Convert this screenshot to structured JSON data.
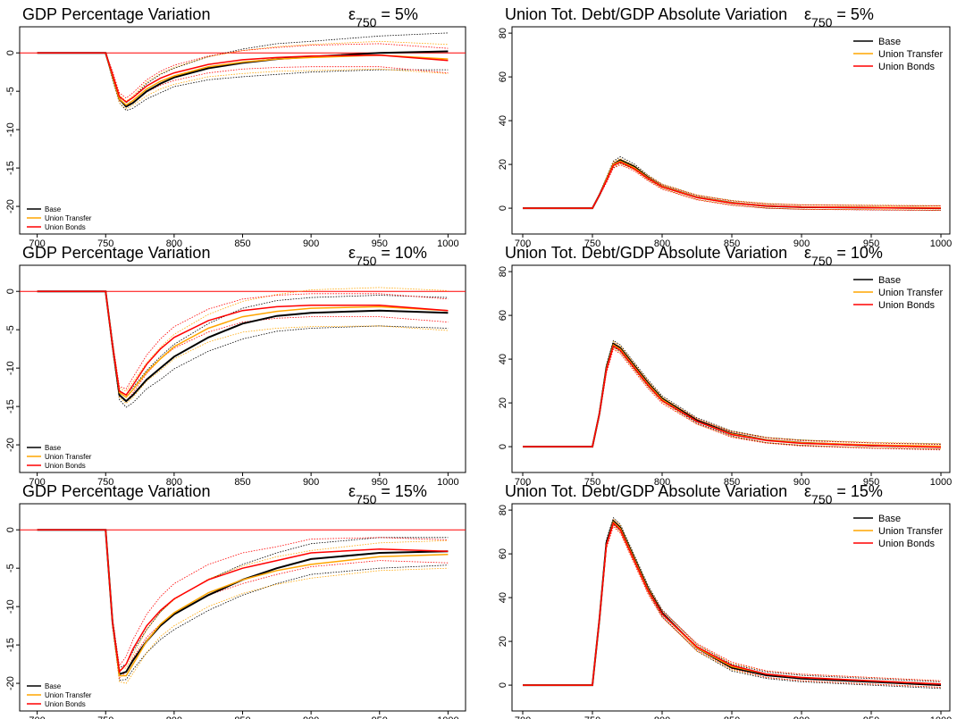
{
  "chart_data": [
    {
      "type": "line",
      "title": "GDP Percentage Variation",
      "annotation": [
        "ε",
        "750",
        " = 5%"
      ],
      "x": [
        700,
        745,
        750,
        755,
        760,
        765,
        770,
        780,
        790,
        800,
        825,
        850,
        875,
        900,
        950,
        1000
      ],
      "xlim": [
        687.2,
        1012.8
      ],
      "xticks": [
        700,
        750,
        800,
        850,
        900,
        950,
        1000
      ],
      "ylim": [
        -23.6,
        3.4
      ],
      "yticks": [
        0,
        -5,
        -10,
        -15,
        -20
      ],
      "hline": 0,
      "hline_color": "#ff0000",
      "legend": "bottom-left",
      "series": [
        {
          "name": "Base",
          "color": "#000000",
          "values": [
            0,
            0,
            0,
            -3,
            -6,
            -7,
            -6.5,
            -5,
            -4,
            -3.2,
            -2,
            -1.3,
            -0.8,
            -0.5,
            0,
            0.2
          ],
          "errors": [
            0,
            0,
            0,
            0.5,
            0.5,
            0.5,
            0.7,
            1,
            1.2,
            1.2,
            1.5,
            1.8,
            2,
            2,
            2.2,
            2.4
          ]
        },
        {
          "name": "Union Transfer",
          "color": "#ffa500",
          "values": [
            0,
            0,
            0,
            -3,
            -6,
            -6.8,
            -6.2,
            -4.7,
            -3.7,
            -3,
            -1.8,
            -1.2,
            -0.8,
            -0.6,
            -0.3,
            -0.8
          ],
          "errors": [
            0,
            0,
            0,
            0.4,
            0.5,
            0.5,
            0.6,
            0.9,
            1,
            1.1,
            1.3,
            1.5,
            1.6,
            1.7,
            1.8,
            1.9
          ]
        },
        {
          "name": "Union Bonds",
          "color": "#ff0000",
          "values": [
            0,
            0,
            0,
            -2.8,
            -5.7,
            -6.4,
            -5.8,
            -4.3,
            -3.3,
            -2.6,
            -1.5,
            -0.9,
            -0.6,
            -0.4,
            -0.3,
            -1
          ],
          "errors": [
            0,
            0,
            0,
            0.4,
            0.5,
            0.5,
            0.6,
            0.8,
            0.9,
            1,
            1.1,
            1.2,
            1.3,
            1.4,
            1.5,
            1.6
          ]
        }
      ]
    },
    {
      "type": "line",
      "title": "Union Tot. Debt/GDP Absolute Variation",
      "annotation": [
        "ε",
        "750",
        " = 5%"
      ],
      "x": [
        700,
        745,
        750,
        755,
        760,
        765,
        770,
        780,
        790,
        800,
        825,
        850,
        875,
        900,
        950,
        1000
      ],
      "xlim": [
        692.3,
        1006.4
      ],
      "xticks": [
        700,
        750,
        800,
        850,
        900,
        950,
        1000
      ],
      "ylim": [
        -11.8,
        82.9
      ],
      "yticks": [
        0,
        20,
        40,
        60,
        80
      ],
      "legend": "top-right",
      "series": [
        {
          "name": "Base",
          "color": "#000000",
          "values": [
            0,
            0,
            0,
            6,
            13,
            20,
            22,
            19,
            14,
            10,
            5,
            2.5,
            1,
            0.5,
            0.3,
            0
          ],
          "errors": [
            0,
            0,
            0,
            0.5,
            1,
            1.5,
            1.5,
            1.2,
            1,
            1,
            1,
            1,
            1,
            1,
            1,
            1
          ]
        },
        {
          "name": "Union Transfer",
          "color": "#ffa500",
          "values": [
            0,
            0,
            0,
            6,
            13,
            20,
            21.5,
            18.5,
            13.8,
            10,
            5,
            2.5,
            1.2,
            0.6,
            0.4,
            0.2
          ],
          "errors": [
            0,
            0,
            0,
            0.5,
            1,
            1.2,
            1.2,
            1,
            1,
            1,
            1,
            1,
            1,
            1,
            1,
            1
          ]
        },
        {
          "name": "Union Bonds",
          "color": "#ff0000",
          "values": [
            0,
            0,
            0,
            6,
            12.5,
            19.5,
            21,
            18,
            13.5,
            9.7,
            4.8,
            2.3,
            1,
            0.5,
            0.2,
            0
          ],
          "errors": [
            0,
            0,
            0,
            0.5,
            1,
            1.2,
            1.2,
            1,
            1,
            1,
            1,
            1,
            1,
            1,
            1,
            1
          ]
        }
      ]
    },
    {
      "type": "line",
      "title": "GDP Percentage Variation",
      "annotation": [
        "ε",
        "750",
        " = 10%"
      ],
      "x": [
        700,
        745,
        750,
        755,
        760,
        765,
        770,
        780,
        790,
        800,
        825,
        850,
        875,
        900,
        950,
        1000
      ],
      "xlim": [
        687.2,
        1012.8
      ],
      "xticks": [
        700,
        750,
        800,
        850,
        900,
        950,
        1000
      ],
      "ylim": [
        -23.6,
        3.4
      ],
      "yticks": [
        0,
        -5,
        -10,
        -15,
        -20
      ],
      "hline": 0,
      "hline_color": "#ff0000",
      "legend": "bottom-left",
      "series": [
        {
          "name": "Base",
          "color": "#000000",
          "values": [
            0,
            0,
            0,
            -7,
            -13.5,
            -14.3,
            -13.5,
            -11.5,
            -10,
            -8.5,
            -6,
            -4.2,
            -3.2,
            -2.8,
            -2.5,
            -2.8
          ],
          "errors": [
            0,
            0,
            0,
            0.5,
            0.6,
            0.8,
            1,
            1.2,
            1.5,
            1.6,
            1.8,
            2,
            2,
            2,
            2,
            2
          ]
        },
        {
          "name": "Union Transfer",
          "color": "#ffa500",
          "values": [
            0,
            0,
            0,
            -7,
            -13.2,
            -13.8,
            -12.8,
            -10.5,
            -8.8,
            -7.2,
            -4.8,
            -3.3,
            -2.6,
            -2.2,
            -2,
            -2.5
          ],
          "errors": [
            0,
            0,
            0,
            0.5,
            0.6,
            0.8,
            1,
            1.2,
            1.5,
            1.6,
            1.8,
            2,
            2.2,
            2.4,
            2.5,
            2.6
          ]
        },
        {
          "name": "Union Bonds",
          "color": "#ff0000",
          "values": [
            0,
            0,
            0,
            -7,
            -13,
            -13.5,
            -12.2,
            -9.5,
            -7.5,
            -6,
            -3.8,
            -2.5,
            -2,
            -1.8,
            -1.8,
            -2.5
          ],
          "errors": [
            0,
            0,
            0,
            0.5,
            0.6,
            0.8,
            1,
            1.2,
            1.3,
            1.4,
            1.5,
            1.5,
            1.5,
            1.5,
            1.5,
            1.5
          ]
        }
      ]
    },
    {
      "type": "line",
      "title": "Union Tot. Debt/GDP Absolute Variation",
      "annotation": [
        "ε",
        "750",
        " = 10%"
      ],
      "x": [
        700,
        745,
        750,
        755,
        760,
        765,
        770,
        780,
        790,
        800,
        825,
        850,
        875,
        900,
        950,
        1000
      ],
      "xlim": [
        692.3,
        1006.4
      ],
      "xticks": [
        700,
        750,
        800,
        850,
        900,
        950,
        1000
      ],
      "ylim": [
        -11.8,
        82.9
      ],
      "yticks": [
        0,
        20,
        40,
        60,
        80
      ],
      "legend": "top-right",
      "series": [
        {
          "name": "Base",
          "color": "#000000",
          "values": [
            0,
            0,
            0,
            15,
            36,
            47,
            45,
            37,
            29,
            22,
            12,
            6,
            3,
            1.8,
            0.5,
            0
          ],
          "errors": [
            0,
            0,
            0,
            1,
            1.5,
            1.5,
            1.5,
            1.5,
            1.5,
            1.2,
            1.2,
            1.2,
            1.2,
            1.2,
            1.2,
            1.2
          ]
        },
        {
          "name": "Union Transfer",
          "color": "#ffa500",
          "values": [
            0,
            0,
            0,
            15,
            35.5,
            46.5,
            44.5,
            36.5,
            28.5,
            21.5,
            11.5,
            5.8,
            3,
            1.8,
            0.8,
            0.2
          ],
          "errors": [
            0,
            0,
            0,
            1,
            1.5,
            1.5,
            1.5,
            1.5,
            1.5,
            1.2,
            1.2,
            1.2,
            1.2,
            1.2,
            1.2,
            1.2
          ]
        },
        {
          "name": "Union Bonds",
          "color": "#ff0000",
          "values": [
            0,
            0,
            0,
            15,
            35,
            46,
            44,
            36,
            28,
            21,
            11.5,
            5.5,
            2.8,
            1.5,
            0.5,
            -0.3
          ],
          "errors": [
            0,
            0,
            0,
            1,
            1.5,
            1.5,
            1.5,
            1.5,
            1.5,
            1.2,
            1.2,
            1.2,
            1.2,
            1.2,
            1.2,
            1.2
          ]
        }
      ]
    },
    {
      "type": "line",
      "title": "GDP Percentage Variation",
      "annotation": [
        "ε",
        "750",
        " = 15%"
      ],
      "x": [
        700,
        745,
        750,
        755,
        760,
        765,
        770,
        780,
        790,
        800,
        825,
        850,
        875,
        900,
        950,
        1000
      ],
      "xlim": [
        687.2,
        1012.8
      ],
      "xticks": [
        700,
        750,
        800,
        850,
        900,
        950,
        1000
      ],
      "ylim": [
        -23.6,
        3.4
      ],
      "yticks": [
        0,
        -5,
        -10,
        -15,
        -20
      ],
      "hline": 0,
      "hline_color": "#ff0000",
      "legend": "bottom-left",
      "series": [
        {
          "name": "Base",
          "color": "#000000",
          "values": [
            0,
            0,
            0,
            -12,
            -18.8,
            -18.5,
            -17,
            -14.5,
            -12.5,
            -11,
            -8.5,
            -6.5,
            -5,
            -3.8,
            -3,
            -2.8
          ],
          "errors": [
            0,
            0,
            0,
            0.5,
            0.8,
            1,
            1.2,
            1.5,
            1.8,
            2,
            2,
            2,
            2,
            2,
            2,
            1.8
          ]
        },
        {
          "name": "Union Transfer",
          "color": "#ffa500",
          "values": [
            0,
            0,
            0,
            -12,
            -19,
            -19,
            -17.5,
            -14.5,
            -12.3,
            -10.8,
            -8.2,
            -6.5,
            -5.3,
            -4.5,
            -3.5,
            -3.2
          ],
          "errors": [
            0,
            0,
            0,
            0.5,
            0.8,
            1,
            1.2,
            1.5,
            1.6,
            1.7,
            1.8,
            1.8,
            1.8,
            1.8,
            1.8,
            1.8
          ]
        },
        {
          "name": "Union Bonds",
          "color": "#ff0000",
          "values": [
            0,
            0,
            0,
            -12,
            -18.5,
            -17.5,
            -15.5,
            -12.5,
            -10.5,
            -9,
            -6.5,
            -5,
            -4,
            -3,
            -2.5,
            -2.8
          ],
          "errors": [
            0,
            0,
            0,
            0.5,
            0.8,
            1,
            1.2,
            1.5,
            1.8,
            2,
            2,
            2,
            1.8,
            1.8,
            1.5,
            1.5
          ]
        }
      ]
    },
    {
      "type": "line",
      "title": "Union Tot. Debt/GDP Absolute Variation",
      "annotation": [
        "ε",
        "750",
        " = 15%"
      ],
      "x": [
        700,
        745,
        750,
        755,
        760,
        765,
        770,
        780,
        790,
        800,
        825,
        850,
        875,
        900,
        950,
        1000
      ],
      "xlim": [
        692.3,
        1006.4
      ],
      "xticks": [
        700,
        750,
        800,
        850,
        900,
        950,
        1000
      ],
      "ylim": [
        -11.8,
        82.9
      ],
      "yticks": [
        0,
        20,
        40,
        60,
        80
      ],
      "legend": "top-right",
      "series": [
        {
          "name": "Base",
          "color": "#000000",
          "values": [
            0,
            0,
            0,
            30,
            65,
            75,
            72,
            58,
            44,
            33,
            17,
            8,
            4.5,
            3,
            1.5,
            0
          ],
          "errors": [
            0,
            0,
            0,
            1,
            1.5,
            1.5,
            1.5,
            1.5,
            1.5,
            1.5,
            1.5,
            1.5,
            1.5,
            1.5,
            1.5,
            1.5
          ]
        },
        {
          "name": "Union Transfer",
          "color": "#ffa500",
          "values": [
            0,
            0,
            0,
            30,
            64,
            74.5,
            71.5,
            57.5,
            43.5,
            32.5,
            17,
            8.5,
            5,
            3.5,
            2,
            0.5
          ],
          "errors": [
            0,
            0,
            0,
            1,
            1.5,
            1.5,
            1.5,
            1.5,
            1.5,
            1.5,
            1.5,
            1.5,
            1.5,
            1.5,
            1.5,
            1.5
          ]
        },
        {
          "name": "Union Bonds",
          "color": "#ff0000",
          "values": [
            0,
            0,
            0,
            30,
            64,
            74,
            71,
            57,
            43,
            32.5,
            17.5,
            9,
            5,
            3.5,
            2,
            0.5
          ],
          "errors": [
            0,
            0,
            0,
            1,
            1.5,
            1.5,
            1.5,
            1.5,
            1.5,
            1.5,
            1.5,
            1.5,
            1.5,
            1.5,
            1.5,
            1.5
          ]
        }
      ]
    }
  ]
}
